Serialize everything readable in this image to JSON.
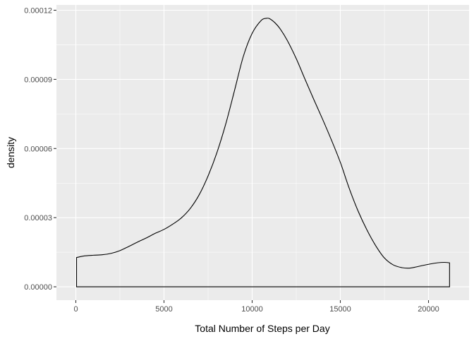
{
  "chart_data": {
    "type": "area",
    "geom": "density",
    "xlabel": "Total Number of Steps per Day",
    "ylabel": "density",
    "xlim": [
      -1100,
      22300
    ],
    "ylim": [
      -5.8e-06,
      0.0001223
    ],
    "x_ticks": [
      0,
      5000,
      10000,
      15000,
      20000
    ],
    "x_tick_labels": [
      "0",
      "5000",
      "10000",
      "15000",
      "20000"
    ],
    "y_ticks": [
      0,
      3e-05,
      6e-05,
      9e-05,
      0.00012
    ],
    "y_tick_labels": [
      "0.00000",
      "0.00003",
      "0.00006",
      "0.00009",
      "0.00012"
    ],
    "grid": true,
    "panel_background": "#ebebeb",
    "grid_color": "#ffffff",
    "line_color": "#000000",
    "series": [
      {
        "x": [
          41,
          500,
          1000,
          1500,
          2000,
          2500,
          3000,
          3500,
          4000,
          4500,
          5000,
          5500,
          6000,
          6500,
          7000,
          7500,
          8000,
          8500,
          9000,
          9500,
          10000,
          10500,
          10800,
          11000,
          11300,
          11600,
          12000,
          12500,
          13000,
          13500,
          14000,
          14500,
          15000,
          15500,
          16000,
          16500,
          17000,
          17500,
          18000,
          18500,
          18900,
          19300,
          19700,
          20100,
          20500,
          20900,
          21194
        ],
        "y": [
          1.27e-05,
          1.34e-05,
          1.37e-05,
          1.39e-05,
          1.45e-05,
          1.57e-05,
          1.75e-05,
          1.94e-05,
          2.12e-05,
          2.32e-05,
          2.49e-05,
          2.72e-05,
          3e-05,
          3.41e-05,
          4e-05,
          4.81e-05,
          5.82e-05,
          7.06e-05,
          8.52e-05,
          0.0001,
          0.00011,
          0.0001155,
          0.0001165,
          0.0001163,
          0.0001145,
          0.0001118,
          0.0001068,
          9.9e-05,
          9e-05,
          8.12e-05,
          7.26e-05,
          6.36e-05,
          5.4e-05,
          4.28e-05,
          3.3e-05,
          2.48e-05,
          1.79e-05,
          1.25e-05,
          9.5e-06,
          8.3e-06,
          8.1e-06,
          8.6e-06,
          9.3e-06,
          9.9e-06,
          1.04e-05,
          1.06e-05,
          1.04e-05
        ]
      }
    ]
  }
}
